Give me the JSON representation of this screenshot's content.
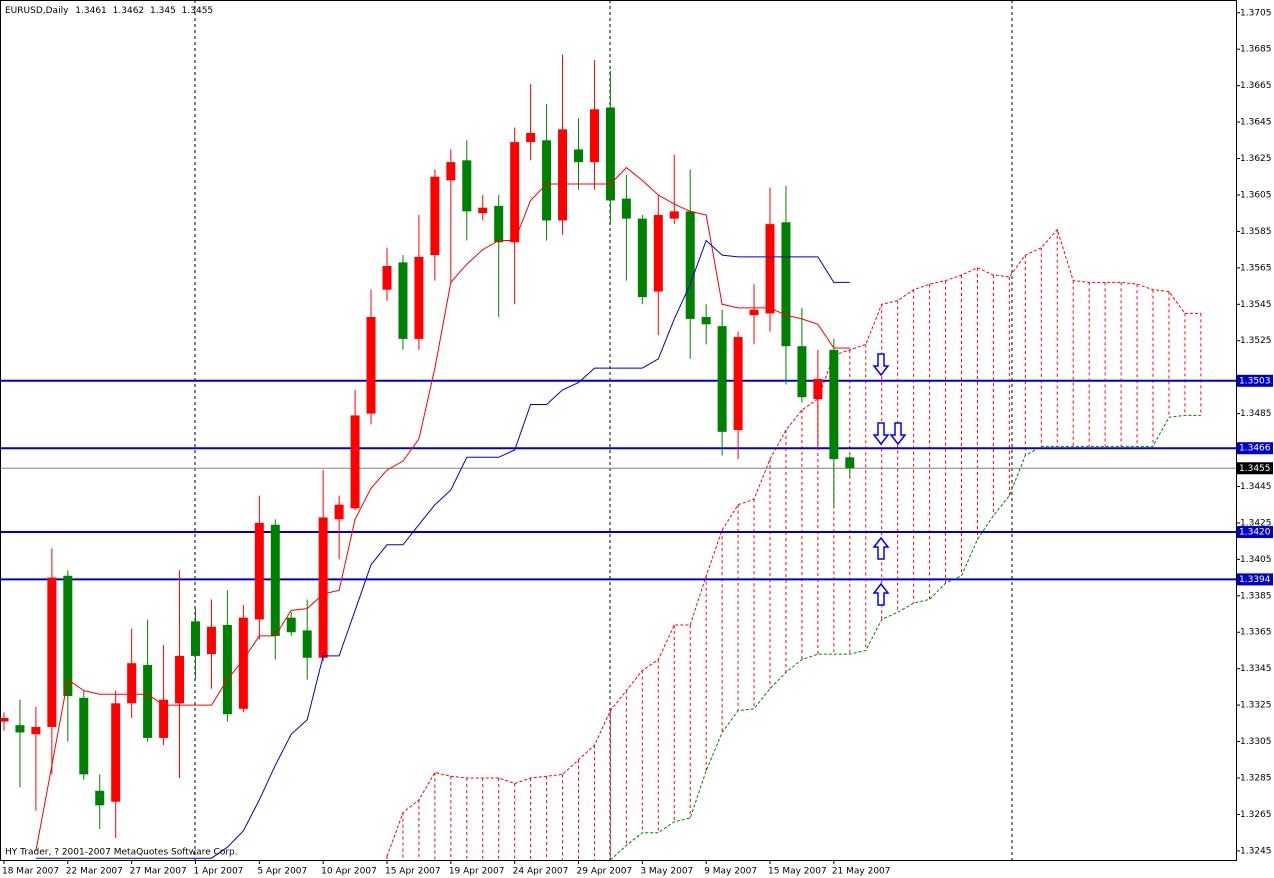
{
  "chart_data": {
    "type": "candlestick",
    "title": "EURUSD,Daily",
    "copyright": "HY Trader, ? 2001-2007 MetaQuotes Software Corp.",
    "categories": [
      "18 Mar 2007",
      null,
      null,
      null,
      "22 Mar 2007",
      null,
      null,
      null,
      "27 Mar 2007",
      null,
      null,
      null,
      "1 Apr 2007",
      null,
      null,
      null,
      "5 Apr 2007",
      null,
      null,
      null,
      "10 Apr 2007",
      null,
      null,
      null,
      "15 Apr 2007",
      null,
      null,
      null,
      "19 Apr 2007",
      null,
      null,
      null,
      "24 Apr 2007",
      null,
      null,
      null,
      "29 Apr 2007",
      null,
      null,
      null,
      "3 May 2007",
      null,
      null,
      null,
      "9 May 2007",
      null,
      null,
      null,
      "15 May 2007",
      null,
      null,
      null,
      "21 May 2007",
      null
    ],
    "open": [
      1.3316,
      1.3314,
      1.3309,
      1.3313,
      1.3396,
      1.3329,
      1.3278,
      1.3272,
      1.3326,
      1.3347,
      1.3307,
      1.3326,
      1.3371,
      1.3353,
      1.3369,
      1.3323,
      1.3372,
      1.3424,
      1.3373,
      1.3366,
      1.3351,
      1.3427,
      1.3433,
      1.3485,
      1.3553,
      1.3568,
      1.3526,
      1.3572,
      1.3613,
      1.3624,
      1.3595,
      1.3599,
      1.3579,
      1.3634,
      1.3635,
      1.3591,
      1.363,
      1.3623,
      1.3653,
      1.3603,
      1.3592,
      1.3552,
      1.3592,
      1.3596,
      1.3538,
      1.3533,
      1.3476,
      1.3539,
      1.354,
      1.359,
      1.3522,
      1.3493,
      1.352,
      1.3461
    ],
    "high": [
      1.3321,
      1.3328,
      1.3324,
      1.3411,
      1.3399,
      1.3333,
      1.3287,
      1.3333,
      1.3367,
      1.3372,
      1.3358,
      1.3399,
      1.3378,
      1.3383,
      1.3388,
      1.338,
      1.344,
      1.3427,
      1.3376,
      1.3383,
      1.3454,
      1.344,
      1.3498,
      1.3553,
      1.3576,
      1.3572,
      1.3594,
      1.3619,
      1.363,
      1.3635,
      1.3605,
      1.3605,
      1.3642,
      1.3666,
      1.3655,
      1.3682,
      1.3647,
      1.3679,
      1.3673,
      1.3616,
      1.3594,
      1.3605,
      1.3627,
      1.3619,
      1.3545,
      1.3542,
      1.353,
      1.3556,
      1.3609,
      1.361,
      1.3543,
      1.352,
      1.3526,
      1.3462
    ],
    "low": [
      1.3311,
      1.328,
      1.3267,
      1.3287,
      1.3305,
      1.3284,
      1.3257,
      1.3252,
      1.3318,
      1.3305,
      1.3303,
      1.3285,
      1.3339,
      1.3334,
      1.3316,
      1.3321,
      1.3361,
      1.335,
      1.3363,
      1.3339,
      1.3349,
      1.3405,
      1.3432,
      1.3479,
      1.3547,
      1.352,
      1.352,
      1.3558,
      1.3557,
      1.358,
      1.3591,
      1.3538,
      1.3545,
      1.3624,
      1.358,
      1.3583,
      1.3608,
      1.3608,
      1.3589,
      1.3558,
      1.3545,
      1.3528,
      1.3589,
      1.3515,
      1.3523,
      1.3462,
      1.346,
      1.3523,
      1.353,
      1.3501,
      1.3491,
      1.3465,
      1.3433,
      1.345
    ],
    "close": [
      1.3318,
      1.331,
      1.3313,
      1.3395,
      1.333,
      1.3287,
      1.327,
      1.3326,
      1.3348,
      1.3307,
      1.3328,
      1.3352,
      1.3352,
      1.3368,
      1.332,
      1.3373,
      1.3425,
      1.3363,
      1.3365,
      1.3351,
      1.3428,
      1.3435,
      1.3484,
      1.3538,
      1.3566,
      1.3526,
      1.3571,
      1.3615,
      1.3623,
      1.3596,
      1.3598,
      1.3579,
      1.3634,
      1.3639,
      1.3591,
      1.3641,
      1.3623,
      1.3652,
      1.3602,
      1.3592,
      1.3549,
      1.3594,
      1.3596,
      1.3537,
      1.3534,
      1.3475,
      1.3527,
      1.3542,
      1.3589,
      1.3522,
      1.3494,
      1.3504,
      1.346,
      1.3455
    ],
    "up_color": "#ff0000",
    "down_color": "#008000",
    "lines": [
      {
        "color": "#ff0000",
        "values": [
          null,
          null,
          1.3245,
          1.3292,
          1.3339,
          1.3333,
          1.3331,
          1.3331,
          1.3331,
          1.3331,
          1.3325,
          1.3325,
          1.3325,
          1.3325,
          1.3339,
          1.335,
          1.3363,
          1.3363,
          1.3377,
          1.3378,
          1.3386,
          1.3388,
          1.3427,
          1.3444,
          1.3454,
          1.3459,
          1.3471,
          1.351,
          1.3557,
          1.3567,
          1.3575,
          1.358,
          1.358,
          1.3602,
          1.3611,
          1.3611,
          1.3611,
          1.3611,
          1.3611,
          1.362,
          1.3613,
          1.3605,
          1.36,
          1.3596,
          1.3594,
          1.3545,
          1.3543,
          1.3543,
          1.3543,
          1.3539,
          1.3537,
          1.3534,
          1.3521,
          1.3521
        ]
      },
      {
        "color": "#0000cc",
        "values": [
          null,
          null,
          1.3241,
          1.3241,
          1.3241,
          1.3241,
          1.3241,
          1.3241,
          1.3241,
          1.3241,
          1.3241,
          1.3241,
          1.3241,
          1.3241,
          1.3247,
          1.3256,
          1.3273,
          1.3292,
          1.3309,
          1.3317,
          1.3352,
          1.3352,
          1.3377,
          1.3402,
          1.3413,
          1.3413,
          1.3424,
          1.3435,
          1.3443,
          1.3461,
          1.3461,
          1.3461,
          1.3465,
          1.349,
          1.349,
          1.3498,
          1.3502,
          1.351,
          1.351,
          1.351,
          1.351,
          1.3515,
          1.3537,
          1.3556,
          1.358,
          1.3572,
          1.3571,
          1.3571,
          1.3571,
          1.3571,
          1.3571,
          1.3571,
          1.3557,
          1.3557
        ]
      }
    ],
    "cloud": {
      "hatch_color": "#ff0000",
      "span_a": {
        "color": "#ff0000",
        "values": [
          null,
          null,
          null,
          null,
          null,
          null,
          null,
          null,
          null,
          null,
          null,
          null,
          null,
          null,
          null,
          null,
          null,
          null,
          null,
          null,
          null,
          null,
          null,
          null,
          1.3242,
          1.3266,
          1.3273,
          1.3288,
          1.3286,
          1.3285,
          1.3285,
          1.3285,
          1.3282,
          1.3285,
          1.3286,
          1.3287,
          1.3295,
          1.3303,
          1.3322,
          1.3333,
          1.3344,
          1.335,
          1.3369,
          1.3369,
          1.3396,
          1.3421,
          1.3435,
          1.3438,
          1.346,
          1.3476,
          1.3487,
          1.3493,
          1.3517,
          1.352,
          1.3523,
          1.3545,
          1.3547,
          1.3553,
          1.3556,
          1.3558,
          1.3561,
          1.3565,
          1.3561,
          1.356,
          1.3572,
          1.3576,
          1.3586,
          1.3558,
          1.3557,
          1.3557,
          1.3557,
          1.3556,
          1.3553,
          1.3552,
          1.354,
          1.354
        ]
      },
      "span_b": {
        "color": "#008000",
        "values": [
          null,
          null,
          null,
          null,
          null,
          null,
          null,
          null,
          null,
          null,
          null,
          null,
          null,
          null,
          null,
          null,
          null,
          null,
          null,
          null,
          null,
          null,
          null,
          null,
          null,
          null,
          null,
          null,
          null,
          null,
          null,
          null,
          null,
          null,
          null,
          null,
          null,
          null,
          1.324,
          1.3248,
          1.3255,
          1.3255,
          1.3261,
          1.3263,
          1.3289,
          1.331,
          1.3322,
          1.3323,
          1.3334,
          1.3343,
          1.335,
          1.3353,
          1.3353,
          1.3353,
          1.3355,
          1.3372,
          1.3376,
          1.3381,
          1.3383,
          1.3392,
          1.3396,
          1.3416,
          1.3429,
          1.344,
          1.3462,
          1.3467,
          1.3467,
          1.3467,
          1.3467,
          1.3467,
          1.3467,
          1.3467,
          1.3467,
          1.3483,
          1.3484,
          1.3484
        ]
      }
    },
    "levels": [
      1.3503,
      1.3466,
      {
        "value": 1.342,
        "label": "1.3420"
      },
      1.3394
    ],
    "level_color": "#0000cc",
    "bid_color": "#808080",
    "xlim": [
      -0.25,
      77.2
    ],
    "ylim": [
      1.324,
      1.3712
    ],
    "yticks": [
      1.3705,
      1.3685,
      1.3665,
      1.3645,
      1.3625,
      1.3605,
      1.3585,
      1.3565,
      1.3545,
      1.3525,
      1.3485,
      1.3445,
      1.3425,
      1.3405,
      1.3385,
      1.3365,
      1.3345,
      1.3325,
      1.3305,
      1.3285,
      1.3265,
      1.3245
    ]
  }
}
